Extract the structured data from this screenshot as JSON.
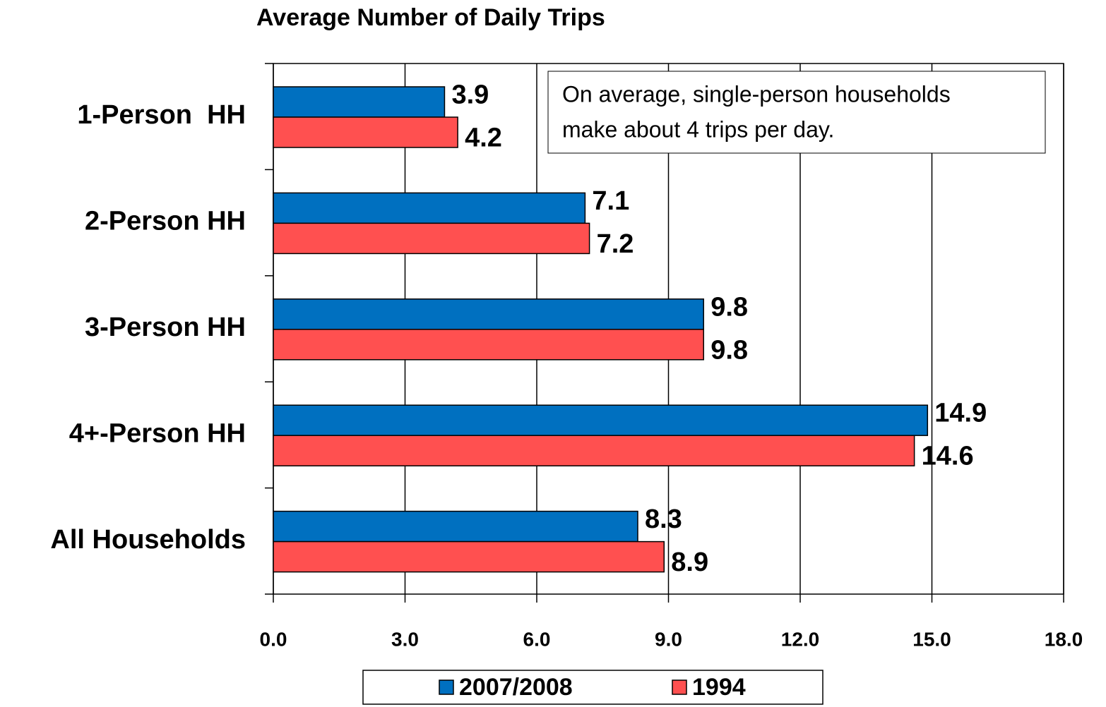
{
  "chart_data": {
    "type": "bar",
    "orientation": "horizontal",
    "title": "Average Number of Daily Trips",
    "categories": [
      "1-Person  HH",
      "2-Person HH",
      "3-Person HH",
      "4+-Person HH",
      "All Households"
    ],
    "series": [
      {
        "name": "2007/2008",
        "color": "#0070c0",
        "values": [
          3.9,
          7.1,
          9.8,
          14.9,
          8.3
        ]
      },
      {
        "name": "1994",
        "color": "#ff5050",
        "values": [
          4.2,
          7.2,
          9.8,
          14.6,
          8.9
        ]
      }
    ],
    "xlim": [
      0,
      18
    ],
    "xticks": [
      {
        "value": 0,
        "label": "0.0"
      },
      {
        "value": 3,
        "label": "3.0"
      },
      {
        "value": 6,
        "label": "6.0"
      },
      {
        "value": 9,
        "label": "9.0"
      },
      {
        "value": 12,
        "label": "12.0"
      },
      {
        "value": 15,
        "label": "15.0"
      },
      {
        "value": 18,
        "label": "18.0"
      }
    ],
    "grid": true,
    "legend": "bottom",
    "annotation": [
      "On average, single-person households",
      "make about 4 trips per day."
    ]
  }
}
